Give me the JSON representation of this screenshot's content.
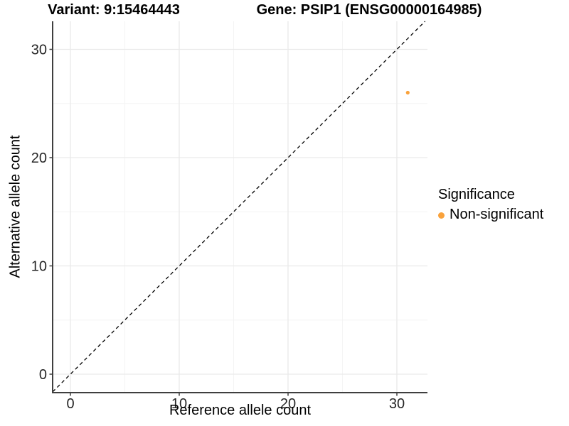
{
  "chart_data": {
    "type": "scatter",
    "title_left": "Variant: 9:15464443",
    "title_right": "Gene: PSIP1 (ENSG00000164985)",
    "xlabel": "Reference allele count",
    "ylabel": "Alternative allele count",
    "x_ticks": [
      0,
      10,
      20,
      30
    ],
    "y_ticks": [
      0,
      10,
      20,
      30
    ],
    "x_minor_ticks": [
      5,
      15,
      25
    ],
    "y_minor_ticks": [
      5,
      15,
      25
    ],
    "xlim": [
      -1.6,
      32.8
    ],
    "ylim": [
      -1.7,
      32.5
    ],
    "grid": "major and minor, light gray on white",
    "points": [
      {
        "x": 31,
        "y": 26,
        "series": "Non-significant",
        "color": "#F9A23C"
      }
    ],
    "reference_line": {
      "type": "identity y=x",
      "style": "dashed",
      "color": "#000000"
    },
    "legend": {
      "title": "Significance",
      "position": "right",
      "items": [
        {
          "label": "Non-significant",
          "color": "#F9A23C"
        }
      ]
    },
    "colors": {
      "axis_line": "#3f3f3f",
      "tick_label": "#262626",
      "grid_major": "#e9e9e9",
      "grid_minor": "#f4f4f4"
    }
  }
}
